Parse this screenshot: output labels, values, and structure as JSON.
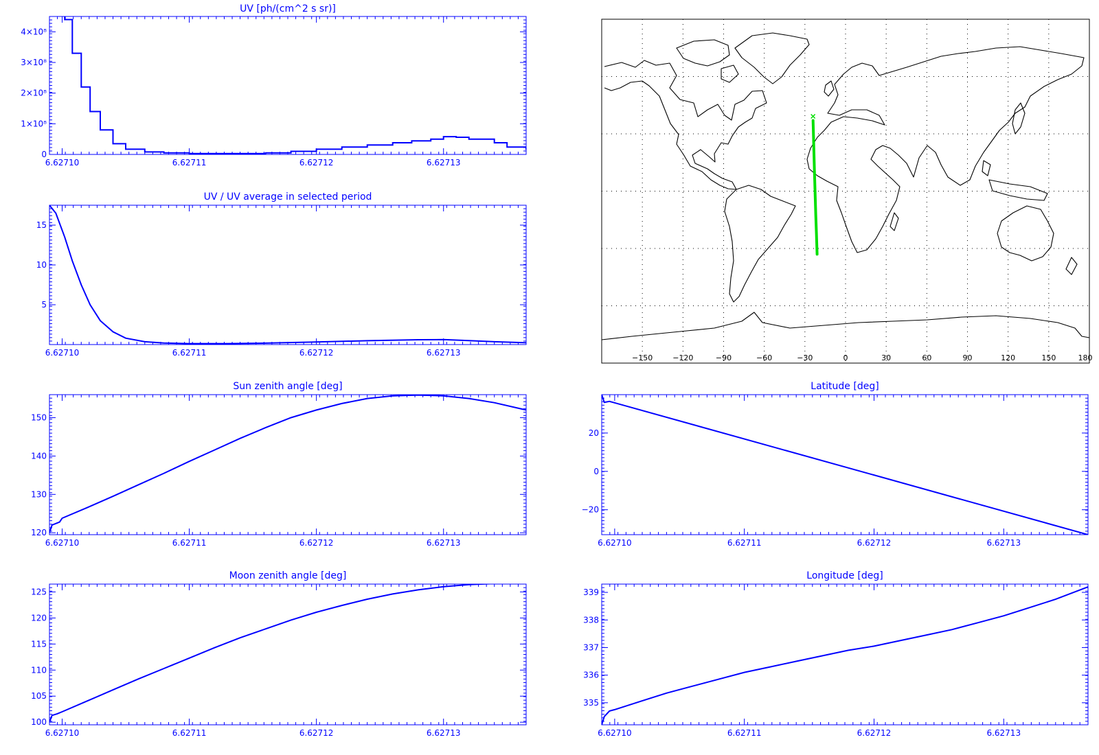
{
  "colors": {
    "plot": "#0000ff",
    "track": "#00e000",
    "coast": "#000000",
    "background": "#ffffff"
  },
  "chart_data": [
    {
      "id": "uv",
      "type": "line",
      "title": "UV [ph/(cm^2 s sr)]",
      "xlim": [
        6.627099,
        6.6271365
      ],
      "ylim": [
        0,
        450000000
      ],
      "x_ticks": [
        6.6271,
        6.62711,
        6.62712,
        6.62713
      ],
      "x_tick_labels": [
        "6.62710",
        "6.62711",
        "6.62712",
        "6.62713"
      ],
      "y_ticks": [
        0,
        100000000,
        200000000,
        300000000,
        400000000
      ],
      "y_tick_labels": [
        "0",
        "1×10⁸",
        "2×10⁸",
        "3×10⁸",
        "4×10⁸"
      ],
      "step": true,
      "series": [
        {
          "x": [
            6.6270995,
            6.6271002,
            6.6271008,
            6.6271015,
            6.6271022,
            6.627103,
            6.627104,
            6.627105,
            6.6271065,
            6.627108,
            6.62711,
            6.627113,
            6.627116,
            6.627118,
            6.62712,
            6.627122,
            6.627124,
            6.627126,
            6.6271275,
            6.627129,
            6.62713,
            6.627131,
            6.627132,
            6.627134,
            6.627135,
            6.6271365
          ],
          "y": [
            460000000,
            440000000,
            330000000,
            220000000,
            140000000,
            80000000,
            35000000,
            17000000,
            8000000,
            5000000,
            3000000,
            3000000,
            5000000,
            10000000,
            17000000,
            24000000,
            31000000,
            38000000,
            44000000,
            50000000,
            58000000,
            56000000,
            50000000,
            38000000,
            24000000,
            15000000
          ]
        }
      ]
    },
    {
      "id": "uv-ratio",
      "type": "line",
      "title": "UV / UV average in selected period",
      "xlim": [
        6.627099,
        6.6271365
      ],
      "ylim": [
        0,
        17.5
      ],
      "x_ticks": [
        6.6271,
        6.62711,
        6.62712,
        6.62713
      ],
      "x_tick_labels": [
        "6.62710",
        "6.62711",
        "6.62712",
        "6.62713"
      ],
      "y_ticks": [
        5,
        10,
        15
      ],
      "y_tick_labels": [
        "5",
        "10",
        "15"
      ],
      "series": [
        {
          "x": [
            6.627099,
            6.6270995,
            6.6271002,
            6.6271008,
            6.6271015,
            6.6271022,
            6.627103,
            6.627104,
            6.627105,
            6.6271065,
            6.627108,
            6.62711,
            6.627113,
            6.627116,
            6.62712,
            6.627124,
            6.627128,
            6.62713,
            6.627132,
            6.627134,
            6.6271365
          ],
          "y": [
            17.5,
            16.5,
            13.5,
            10.5,
            7.5,
            5.0,
            3.0,
            1.6,
            0.8,
            0.35,
            0.2,
            0.12,
            0.12,
            0.18,
            0.32,
            0.48,
            0.6,
            0.62,
            0.5,
            0.35,
            0.22
          ]
        }
      ]
    },
    {
      "id": "sun-zenith",
      "type": "line",
      "title": "Sun zenith angle [deg]",
      "xlim": [
        6.627099,
        6.6271365
      ],
      "ylim": [
        119.5,
        156
      ],
      "x_ticks": [
        6.6271,
        6.62711,
        6.62712,
        6.62713
      ],
      "x_tick_labels": [
        "6.62710",
        "6.62711",
        "6.62712",
        "6.62713"
      ],
      "y_ticks": [
        120,
        130,
        140,
        150
      ],
      "y_tick_labels": [
        "120",
        "130",
        "140",
        "150"
      ],
      "series": [
        {
          "x": [
            6.627099,
            6.6270992,
            6.6270998,
            6.6271,
            6.627102,
            6.627104,
            6.627106,
            6.627108,
            6.62711,
            6.627112,
            6.627114,
            6.627116,
            6.627118,
            6.62712,
            6.627122,
            6.627124,
            6.627126,
            6.627128,
            6.62713,
            6.627132,
            6.627134,
            6.6271365
          ],
          "y": [
            120.0,
            122.0,
            122.8,
            123.8,
            126.6,
            129.5,
            132.5,
            135.5,
            138.6,
            141.6,
            144.6,
            147.4,
            150.0,
            152.0,
            153.7,
            155.0,
            155.7,
            155.9,
            155.7,
            155.0,
            153.9,
            152.0
          ]
        }
      ]
    },
    {
      "id": "moon-zenith",
      "type": "line",
      "title": "Moon zenith angle [deg]",
      "xlim": [
        6.627099,
        6.6271365
      ],
      "ylim": [
        99.5,
        126.5
      ],
      "x_ticks": [
        6.6271,
        6.62711,
        6.62712,
        6.62713
      ],
      "x_tick_labels": [
        "6.62710",
        "6.62711",
        "6.62712",
        "6.62713"
      ],
      "y_ticks": [
        100,
        105,
        110,
        115,
        120,
        125
      ],
      "y_tick_labels": [
        "100",
        "105",
        "110",
        "115",
        "120",
        "125"
      ],
      "series": [
        {
          "x": [
            6.627099,
            6.6270992,
            6.6270996,
            6.6271,
            6.627102,
            6.627104,
            6.627106,
            6.627108,
            6.62711,
            6.627112,
            6.627114,
            6.627116,
            6.627118,
            6.62712,
            6.627122,
            6.627124,
            6.627126,
            6.627128,
            6.62713,
            6.627132,
            6.627134,
            6.6271365
          ],
          "y": [
            100.0,
            101.3,
            101.6,
            102.0,
            104.1,
            106.2,
            108.3,
            110.3,
            112.3,
            114.3,
            116.2,
            117.9,
            119.6,
            121.1,
            122.4,
            123.6,
            124.6,
            125.4,
            126.0,
            126.4,
            126.6,
            126.7
          ]
        }
      ]
    },
    {
      "id": "latitude",
      "type": "line",
      "title": "Latitude [deg]",
      "xlim": [
        6.627099,
        6.6271365
      ],
      "ylim": [
        -33,
        40
      ],
      "x_ticks": [
        6.6271,
        6.62711,
        6.62712,
        6.62713
      ],
      "x_tick_labels": [
        "6.62710",
        "6.62711",
        "6.62712",
        "6.62713"
      ],
      "y_ticks": [
        -20,
        0,
        20
      ],
      "y_tick_labels": [
        "−20",
        "0",
        "20"
      ],
      "series": [
        {
          "x": [
            6.627099,
            6.6270992,
            6.6270996,
            6.6271365
          ],
          "y": [
            40.0,
            36.0,
            36.5,
            -33.0
          ]
        }
      ]
    },
    {
      "id": "longitude",
      "type": "line",
      "title": "Longitude [deg]",
      "xlim": [
        6.627099,
        6.6271365
      ],
      "ylim": [
        334.2,
        339.3
      ],
      "x_ticks": [
        6.6271,
        6.62711,
        6.62712,
        6.62713
      ],
      "x_tick_labels": [
        "6.62710",
        "6.62711",
        "6.62712",
        "6.62713"
      ],
      "y_ticks": [
        335,
        336,
        337,
        338,
        339
      ],
      "y_tick_labels": [
        "335",
        "336",
        "337",
        "338",
        "339"
      ],
      "series": [
        {
          "x": [
            6.627099,
            6.6270992,
            6.6270996,
            6.6271,
            6.627102,
            6.627104,
            6.627106,
            6.627108,
            6.62711,
            6.627112,
            6.627114,
            6.627116,
            6.627118,
            6.62712,
            6.627122,
            6.627124,
            6.627126,
            6.627128,
            6.62713,
            6.627132,
            6.627134,
            6.6271365
          ],
          "y": [
            334.2,
            334.5,
            334.7,
            334.75,
            335.05,
            335.35,
            335.6,
            335.85,
            336.1,
            336.3,
            336.5,
            336.7,
            336.9,
            337.05,
            337.25,
            337.45,
            337.65,
            337.9,
            338.15,
            338.45,
            338.75,
            339.2
          ]
        }
      ]
    },
    {
      "id": "map",
      "type": "map",
      "xlim": [
        -180,
        180
      ],
      "ylim": [
        -90,
        90
      ],
      "x_ticks": [
        -150,
        -120,
        -90,
        -60,
        -30,
        0,
        30,
        60,
        90,
        120,
        150,
        180
      ],
      "x_tick_labels": [
        "−150",
        "−120",
        "−90",
        "−60",
        "−30",
        "0",
        "30",
        "60",
        "90",
        "120",
        "150",
        "180"
      ],
      "grid": true,
      "track": {
        "lon": [
          -24,
          -23.5,
          -23,
          -22.5,
          -22,
          -21.5,
          -21
        ],
        "lat": [
          37,
          24,
          12,
          0,
          -12,
          -22,
          -33
        ]
      }
    }
  ]
}
